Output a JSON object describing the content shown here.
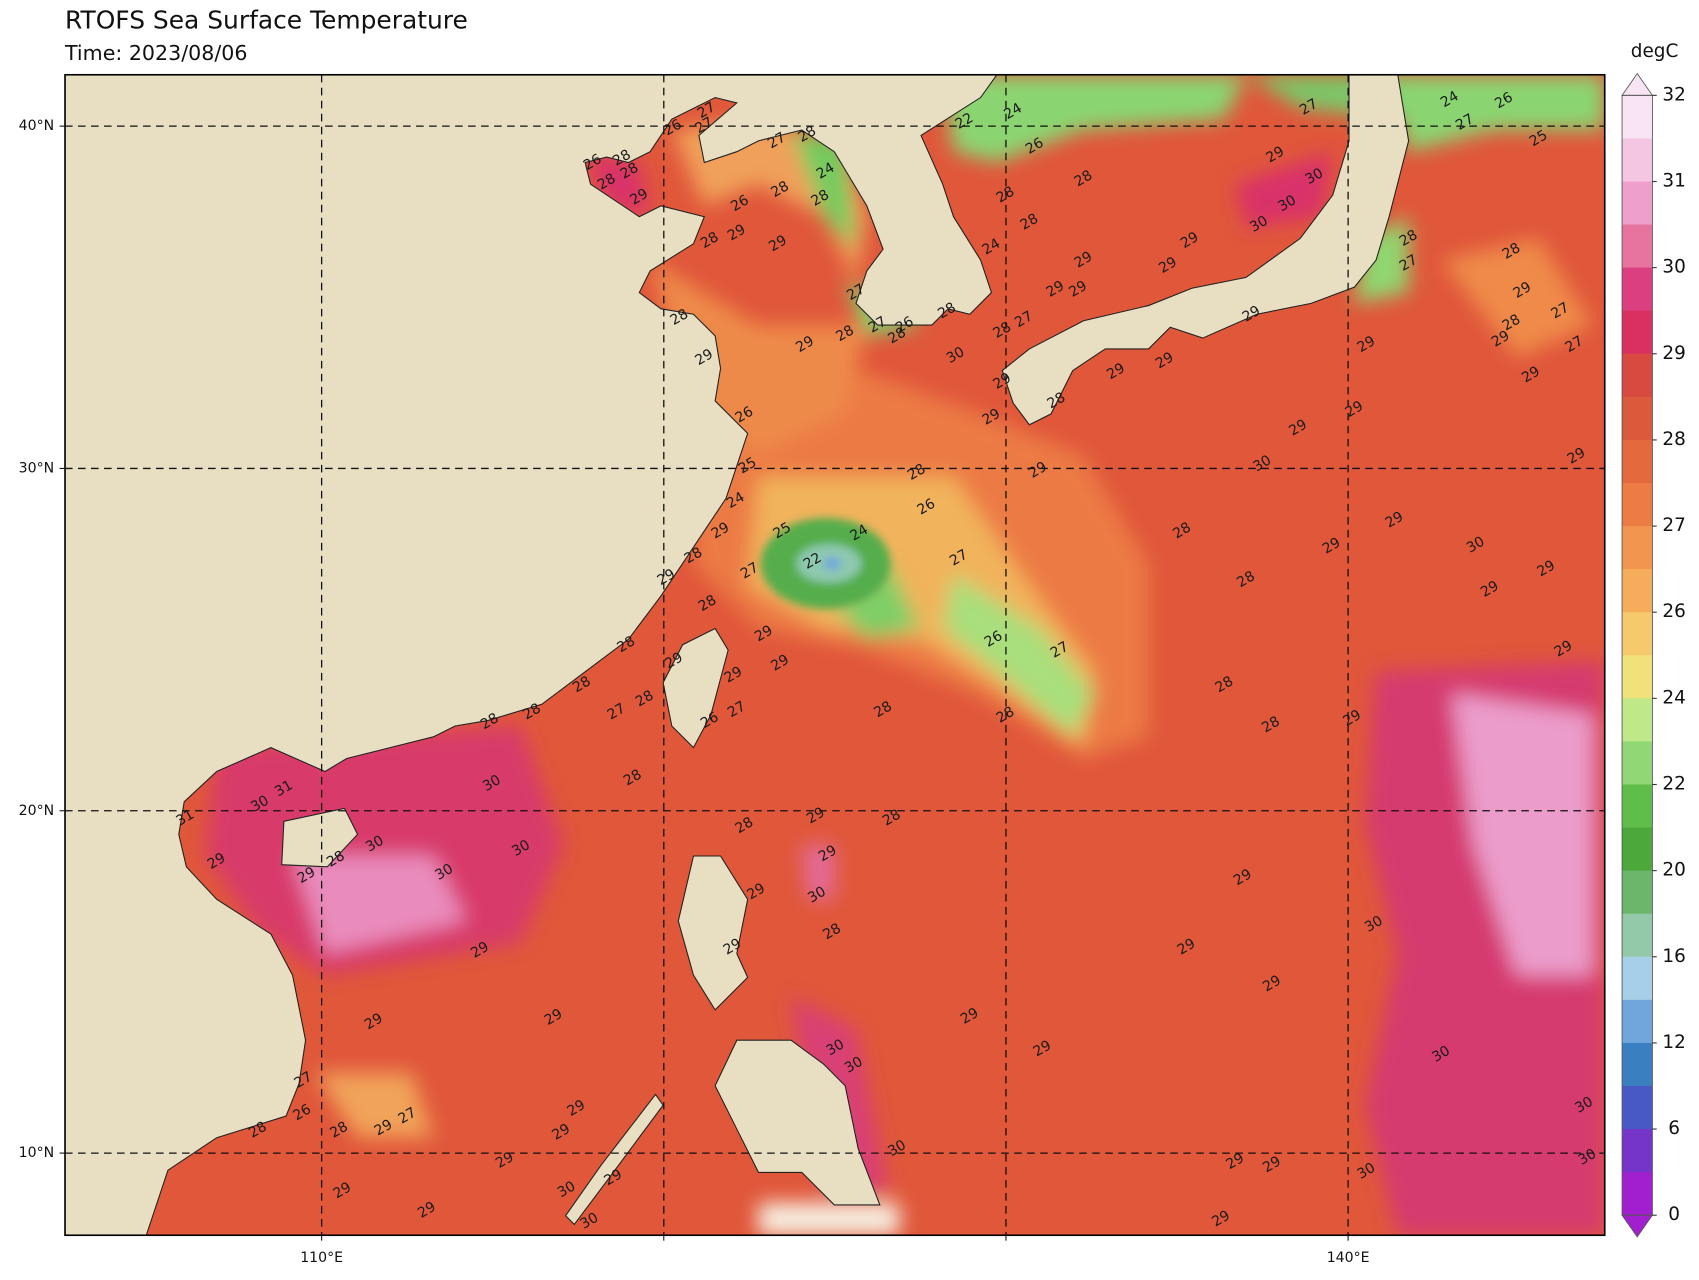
{
  "header": {
    "title": "RTOFS Sea Surface Temperature",
    "subtitle": "Time: 2023/08/06"
  },
  "map": {
    "xlim": [
      102.5,
      147.5
    ],
    "ylim": [
      7.6,
      41.5
    ],
    "xticks": [
      {
        "value": 110,
        "label": "110°E"
      },
      {
        "value": 120,
        "label": null
      },
      {
        "value": 130,
        "label": null
      },
      {
        "value": 140,
        "label": "140°E"
      }
    ],
    "yticks": [
      {
        "value": 10,
        "label": "10°N"
      },
      {
        "value": 20,
        "label": "20°N"
      },
      {
        "value": 30,
        "label": "30°N"
      },
      {
        "value": 40,
        "label": "40°N"
      }
    ],
    "grid": true,
    "contour_labels": [
      27,
      26,
      27,
      27,
      28,
      28,
      28,
      26,
      28,
      29,
      26,
      28,
      24,
      28,
      28,
      29,
      29,
      22,
      24,
      26,
      28,
      27,
      29,
      30,
      30,
      30,
      24,
      26,
      27,
      25,
      28,
      27,
      28,
      29,
      28,
      27,
      27,
      29,
      29,
      28,
      28,
      29,
      29,
      29,
      29,
      29,
      24,
      28,
      27,
      28,
      27,
      26,
      28,
      28,
      29,
      29,
      30,
      28,
      27,
      29,
      29,
      28,
      29,
      29,
      29,
      29,
      29,
      29,
      26,
      30,
      29,
      28,
      29,
      25,
      24,
      26,
      29,
      28,
      24,
      25,
      22,
      27,
      27,
      29,
      28,
      29,
      29,
      30,
      29,
      29,
      28,
      28,
      26,
      27,
      29,
      29,
      28,
      29,
      28,
      28,
      27,
      29,
      28,
      29,
      29,
      28,
      26,
      27,
      28,
      28,
      28,
      28,
      30,
      28,
      31,
      30,
      31,
      29,
      28,
      28,
      30,
      30,
      29,
      29,
      29,
      28,
      30,
      29,
      29,
      30,
      28,
      30,
      29,
      29,
      29,
      29,
      29,
      29,
      29,
      29,
      30,
      30,
      30,
      27,
      26,
      27,
      28,
      28,
      29,
      29,
      29,
      30,
      30,
      30,
      29,
      29,
      30,
      29,
      29,
      29,
      29,
      30,
      30,
      29
    ]
  },
  "colorbar": {
    "title": "degC",
    "ticks": [
      32,
      31,
      30,
      29,
      28,
      27,
      26,
      24,
      22,
      20,
      16,
      12,
      6,
      0
    ],
    "colors": [
      "#f8e4f2",
      "#f4c6e2",
      "#ee9fcb",
      "#e7739f",
      "#dc3f7f",
      "#d9305f",
      "#d8493f",
      "#dc5a3c",
      "#e46a3e",
      "#ec7c44",
      "#f2954e",
      "#f5ad5c",
      "#f6c96c",
      "#f1e17b",
      "#bfe889",
      "#92d776",
      "#5fbe4a",
      "#4ca83a",
      "#6cb66c",
      "#93c8a8",
      "#a8cfe8",
      "#6fa6dc",
      "#3a7fc0",
      "#4858c4",
      "#7535c8",
      "#a21fd0"
    ]
  }
}
